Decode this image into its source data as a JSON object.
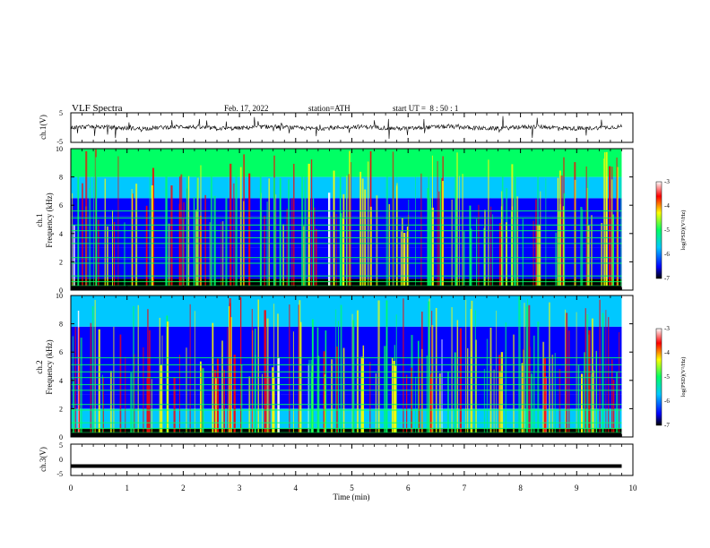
{
  "header": {
    "title": "VLF Spectra",
    "date": "Feb. 17, 2022",
    "station": "station=ATH",
    "start_ut": "start UT =  8 : 50 : 1"
  },
  "chart_data": [
    {
      "type": "line",
      "panel": "ch1-waveform",
      "ylabel": "ch.1(V)",
      "ylim": [
        -5,
        5
      ],
      "yticks": [
        "5",
        "-5"
      ],
      "trace_color": "#000000",
      "note": "dense noisy waveform around 0 V with frequent impulsive spikes"
    },
    {
      "type": "heatmap",
      "panel": "ch1-spectrogram",
      "ylabel_line1": "ch.1",
      "ylabel_line2": "Frequency (kHz)",
      "ylim": [
        0,
        10
      ],
      "yticks": [
        "0",
        "2",
        "4",
        "6",
        "8",
        "10"
      ],
      "colorbar": {
        "label": "log(PSD)(V²/Hz)",
        "range": [
          -7,
          -3
        ],
        "ticks": [
          "-3",
          "-4",
          "-5",
          "-6",
          "-7"
        ]
      },
      "bands_kHz": [
        {
          "from": 0,
          "to": 0.8,
          "level": -6.8
        },
        {
          "from": 0.8,
          "to": 2.2,
          "level": -6.0
        },
        {
          "from": 2.2,
          "to": 3.0,
          "level": -6.2
        },
        {
          "from": 3.0,
          "to": 5.2,
          "level": -6.1
        },
        {
          "from": 5.2,
          "to": 6.5,
          "level": -6.2
        },
        {
          "from": 6.5,
          "to": 8.0,
          "level": -5.2
        },
        {
          "from": 8.0,
          "to": 10.0,
          "level": -4.6
        }
      ]
    },
    {
      "type": "heatmap",
      "panel": "ch2-spectrogram",
      "ylabel_line1": "ch.2",
      "ylabel_line2": "Frequency (kHz)",
      "ylim": [
        0,
        10
      ],
      "yticks": [
        "0",
        "2",
        "4",
        "6",
        "8",
        "10"
      ],
      "colorbar": {
        "label": "log(PSD)(V²/Hz)",
        "range": [
          -7,
          -3
        ],
        "ticks": [
          "-3",
          "-4",
          "-5",
          "-6",
          "-7"
        ]
      },
      "bands_kHz": [
        {
          "from": 0,
          "to": 0.6,
          "level": -6.8
        },
        {
          "from": 0.6,
          "to": 2.0,
          "level": -5.8
        },
        {
          "from": 2.0,
          "to": 3.0,
          "level": -6.1
        },
        {
          "from": 3.0,
          "to": 5.0,
          "level": -6.0
        },
        {
          "from": 5.0,
          "to": 7.8,
          "level": -6.2
        },
        {
          "from": 7.8,
          "to": 10.0,
          "level": -5.4
        }
      ]
    },
    {
      "type": "line",
      "panel": "ch3-waveform",
      "ylabel": "ch.3(V)",
      "ylim": [
        -5,
        5
      ],
      "yticks": [
        "5",
        "0",
        "-5"
      ],
      "trace_value_V": -2,
      "trace_color": "#000000"
    }
  ],
  "xaxis": {
    "label": "Time (min)",
    "xlim": [
      0,
      10
    ],
    "data_end_min": 9.8,
    "ticks": [
      "0",
      "1",
      "2",
      "3",
      "4",
      "5",
      "6",
      "7",
      "8",
      "9",
      "10"
    ]
  },
  "colormap": [
    "#000000",
    "#0000ff",
    "#00c8ff",
    "#00ff64",
    "#ffff00",
    "#ff0000",
    "#ffffff"
  ]
}
